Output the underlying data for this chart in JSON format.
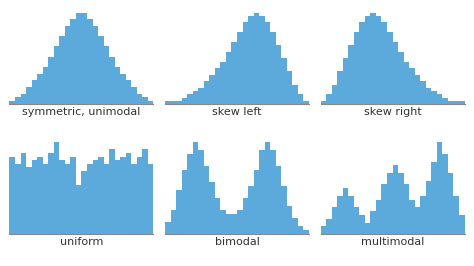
{
  "bar_color": "#5baadb",
  "bg_color": "#ffffff",
  "label_fontsize": 8,
  "labels": [
    "symmetric, unimodal",
    "skew left",
    "skew right",
    "uniform",
    "bimodal",
    "multimodal"
  ],
  "symmetric_unimodal": [
    1,
    2,
    3,
    5,
    7,
    9,
    11,
    14,
    17,
    20,
    23,
    25,
    27,
    27,
    25,
    23,
    20,
    17,
    14,
    11,
    9,
    7,
    5,
    3,
    2,
    1
  ],
  "skew_left": [
    1,
    1,
    1,
    2,
    3,
    4,
    5,
    7,
    9,
    11,
    13,
    16,
    19,
    22,
    25,
    27,
    28,
    27,
    25,
    22,
    18,
    14,
    10,
    6,
    3,
    1
  ],
  "skew_right": [
    1,
    3,
    6,
    10,
    14,
    18,
    22,
    25,
    27,
    28,
    27,
    25,
    22,
    19,
    16,
    13,
    11,
    9,
    7,
    5,
    4,
    3,
    2,
    1,
    1,
    1
  ],
  "uniform": [
    22,
    20,
    23,
    19,
    21,
    22,
    20,
    23,
    26,
    21,
    20,
    22,
    14,
    18,
    20,
    21,
    22,
    20,
    24,
    21,
    22,
    23,
    20,
    22,
    24,
    20
  ],
  "bimodal": [
    3,
    6,
    11,
    16,
    20,
    23,
    21,
    17,
    13,
    9,
    6,
    5,
    5,
    6,
    9,
    12,
    16,
    21,
    23,
    21,
    17,
    12,
    7,
    4,
    2,
    1
  ],
  "multimodal": [
    2,
    4,
    7,
    10,
    12,
    10,
    7,
    5,
    3,
    6,
    9,
    13,
    16,
    18,
    16,
    13,
    9,
    7,
    10,
    14,
    19,
    24,
    21,
    16,
    10,
    5
  ]
}
